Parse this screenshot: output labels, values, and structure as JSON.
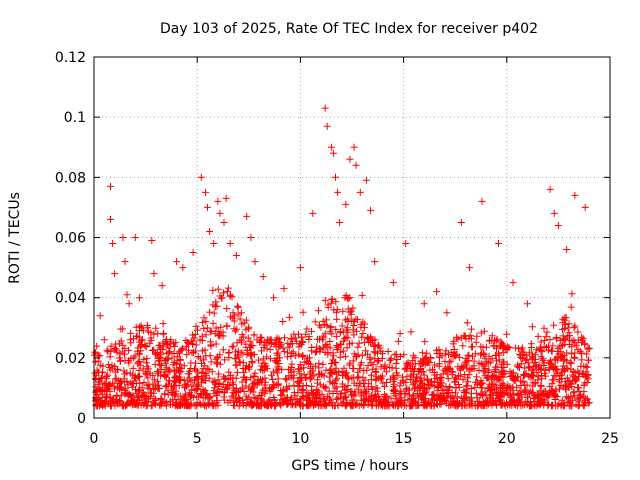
{
  "chart_data": {
    "type": "scatter",
    "title": "Day 103 of 2025, Rate Of TEC Index for receiver p402",
    "xlabel": "GPS time / hours",
    "ylabel": "ROTI / TECUs",
    "xlim": [
      0,
      25
    ],
    "ylim": [
      0,
      0.12
    ],
    "x_ticks": [
      "0",
      "5",
      "10",
      "15",
      "20",
      "25"
    ],
    "y_ticks": [
      "0",
      "0.02",
      "0.04",
      "0.06",
      "0.08",
      "0.1",
      "0.12"
    ],
    "grid": true,
    "marker": "plus",
    "color": "#ff0000",
    "series": [
      {
        "x": [
          0.3,
          0.5,
          0.8,
          0.8,
          0.9,
          1.0,
          1.4,
          1.5,
          1.6,
          1.7,
          2.0,
          2.2,
          2.6,
          2.8,
          2.9,
          3.3,
          4.0,
          4.3,
          4.8,
          5.2,
          5.4,
          5.5,
          5.6,
          5.8,
          6.0,
          6.1,
          6.3,
          6.4,
          6.6,
          6.9,
          7.4,
          7.6,
          7.8,
          8.2,
          8.7,
          9.2,
          10.0,
          10.6,
          11.2,
          11.3,
          11.5,
          11.6,
          11.7,
          11.8,
          11.9,
          12.2,
          12.4,
          12.6,
          12.7,
          12.9,
          13.2,
          13.4,
          13.6,
          14.5,
          15.1,
          16.0,
          16.6,
          17.1,
          17.8,
          18.2,
          18.8,
          19.6,
          20.3,
          21.0,
          22.1,
          22.3,
          22.5,
          22.9,
          23.3,
          23.8
        ],
        "y": [
          0.034,
          0.026,
          0.077,
          0.066,
          0.058,
          0.048,
          0.06,
          0.052,
          0.041,
          0.038,
          0.06,
          0.04,
          0.03,
          0.059,
          0.048,
          0.044,
          0.052,
          0.05,
          0.055,
          0.08,
          0.075,
          0.07,
          0.062,
          0.058,
          0.072,
          0.068,
          0.065,
          0.073,
          0.058,
          0.054,
          0.067,
          0.06,
          0.052,
          0.047,
          0.04,
          0.043,
          0.05,
          0.068,
          0.103,
          0.097,
          0.09,
          0.088,
          0.08,
          0.075,
          0.065,
          0.071,
          0.086,
          0.09,
          0.084,
          0.075,
          0.079,
          0.069,
          0.052,
          0.045,
          0.058,
          0.038,
          0.042,
          0.035,
          0.065,
          0.05,
          0.072,
          0.058,
          0.045,
          0.038,
          0.076,
          0.068,
          0.064,
          0.056,
          0.074,
          0.07
        ]
      }
    ],
    "dense_band": {
      "x_range": [
        0,
        24
      ],
      "y_low": 0.004,
      "y_high": 0.022
    }
  }
}
